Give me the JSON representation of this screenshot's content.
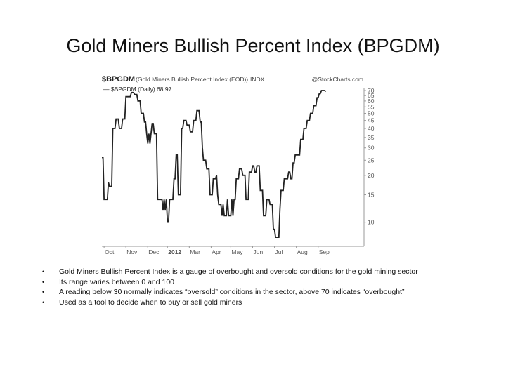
{
  "slide": {
    "title": "Gold Miners Bullish Percent Index (BPGDM)",
    "bullets": [
      "Gold Miners Bullish Percent Index is a gauge of overbought and oversold conditions for the gold mining sector",
      "Its range varies between 0 and 100",
      "A reading below 30 normally indicates “oversold” conditions in the sector, above 70 indicates “overbought”",
      "Used as a tool to decide when to buy or sell gold miners"
    ]
  },
  "chart_data": {
    "type": "line",
    "header": {
      "symbol": "$BPGDM",
      "name": "(Gold Miners Bullish Percent Index (EOD))",
      "exchange": "INDX",
      "credit": "@StockCharts.com"
    },
    "legend": {
      "label": "— $BPGDM (Daily) 68.97",
      "placement": "top-left"
    },
    "y_scale": "log",
    "ylim": [
      7,
      73
    ],
    "xlim": [
      0,
      12
    ],
    "grid": false,
    "x_ticks": [
      {
        "x": 0.1,
        "label": "Oct"
      },
      {
        "x": 1.1,
        "label": "Nov"
      },
      {
        "x": 2.1,
        "label": "Dec"
      },
      {
        "x": 3.0,
        "label": "2012"
      },
      {
        "x": 4.0,
        "label": "Mar"
      },
      {
        "x": 5.0,
        "label": "Apr"
      },
      {
        "x": 5.9,
        "label": "May"
      },
      {
        "x": 6.9,
        "label": "Jun"
      },
      {
        "x": 7.9,
        "label": "Jul"
      },
      {
        "x": 8.9,
        "label": "Aug"
      },
      {
        "x": 9.9,
        "label": "Sep"
      }
    ],
    "y_ticks": [
      {
        "value": 70,
        "label": "70"
      },
      {
        "value": 65,
        "label": "65"
      },
      {
        "value": 60,
        "label": "60"
      },
      {
        "value": 55,
        "label": "55"
      },
      {
        "value": 50,
        "label": "50"
      },
      {
        "value": 45,
        "label": "45"
      },
      {
        "value": 40,
        "label": "40"
      },
      {
        "value": 35,
        "label": "35"
      },
      {
        "value": 30,
        "label": "30"
      },
      {
        "value": 25,
        "label": "25"
      },
      {
        "value": 20,
        "label": "20"
      },
      {
        "value": 15,
        "label": "15"
      },
      {
        "value": 10,
        "label": "10"
      }
    ],
    "series": [
      {
        "name": "$BPGDM",
        "color": "#222222",
        "points": [
          [
            0.0,
            26
          ],
          [
            0.05,
            26
          ],
          [
            0.1,
            14
          ],
          [
            0.25,
            14
          ],
          [
            0.3,
            18
          ],
          [
            0.35,
            17
          ],
          [
            0.45,
            17
          ],
          [
            0.5,
            40
          ],
          [
            0.6,
            40
          ],
          [
            0.65,
            46
          ],
          [
            0.75,
            46
          ],
          [
            0.8,
            40
          ],
          [
            0.9,
            40
          ],
          [
            0.95,
            46
          ],
          [
            1.05,
            46
          ],
          [
            1.1,
            64
          ],
          [
            1.3,
            64
          ],
          [
            1.35,
            68
          ],
          [
            1.45,
            68
          ],
          [
            1.5,
            66
          ],
          [
            1.6,
            66
          ],
          [
            1.65,
            60
          ],
          [
            1.75,
            60
          ],
          [
            1.8,
            50
          ],
          [
            1.9,
            50
          ],
          [
            1.95,
            44
          ],
          [
            2.0,
            44
          ],
          [
            2.05,
            37
          ],
          [
            2.1,
            32
          ],
          [
            2.15,
            37
          ],
          [
            2.2,
            32
          ],
          [
            2.25,
            37
          ],
          [
            2.3,
            43
          ],
          [
            2.35,
            43
          ],
          [
            2.4,
            37
          ],
          [
            2.5,
            37
          ],
          [
            2.55,
            14
          ],
          [
            2.75,
            14
          ],
          [
            2.8,
            12
          ],
          [
            2.85,
            14
          ],
          [
            2.9,
            12
          ],
          [
            2.95,
            14
          ],
          [
            3.0,
            10
          ],
          [
            3.05,
            10
          ],
          [
            3.1,
            14
          ],
          [
            3.25,
            14
          ],
          [
            3.3,
            19
          ],
          [
            3.35,
            19
          ],
          [
            3.4,
            27
          ],
          [
            3.45,
            27
          ],
          [
            3.5,
            15
          ],
          [
            3.6,
            15
          ],
          [
            3.65,
            40
          ],
          [
            3.7,
            40
          ],
          [
            3.75,
            45
          ],
          [
            3.85,
            45
          ],
          [
            3.9,
            42
          ],
          [
            4.0,
            42
          ],
          [
            4.05,
            38
          ],
          [
            4.15,
            38
          ],
          [
            4.2,
            45
          ],
          [
            4.3,
            45
          ],
          [
            4.35,
            52
          ],
          [
            4.45,
            52
          ],
          [
            4.5,
            44
          ],
          [
            4.55,
            44
          ],
          [
            4.6,
            30
          ],
          [
            4.65,
            25
          ],
          [
            4.75,
            25
          ],
          [
            4.8,
            22
          ],
          [
            4.9,
            22
          ],
          [
            4.95,
            15
          ],
          [
            5.05,
            15
          ],
          [
            5.1,
            19
          ],
          [
            5.2,
            19
          ],
          [
            5.25,
            20
          ],
          [
            5.3,
            15
          ],
          [
            5.35,
            13
          ],
          [
            5.45,
            13
          ],
          [
            5.5,
            11
          ],
          [
            5.55,
            13
          ],
          [
            5.6,
            11
          ],
          [
            5.7,
            11
          ],
          [
            5.75,
            14
          ],
          [
            5.8,
            11
          ],
          [
            5.9,
            11
          ],
          [
            5.95,
            14
          ],
          [
            6.0,
            11
          ],
          [
            6.05,
            14
          ],
          [
            6.1,
            14
          ],
          [
            6.15,
            19
          ],
          [
            6.25,
            19
          ],
          [
            6.3,
            22
          ],
          [
            6.4,
            22
          ],
          [
            6.45,
            20
          ],
          [
            6.55,
            20
          ],
          [
            6.6,
            14
          ],
          [
            6.7,
            14
          ],
          [
            6.75,
            21
          ],
          [
            6.85,
            21
          ],
          [
            6.9,
            23
          ],
          [
            6.95,
            23
          ],
          [
            7.0,
            21
          ],
          [
            7.05,
            21
          ],
          [
            7.1,
            23
          ],
          [
            7.2,
            23
          ],
          [
            7.25,
            16
          ],
          [
            7.35,
            16
          ],
          [
            7.4,
            11
          ],
          [
            7.5,
            11
          ],
          [
            7.55,
            14
          ],
          [
            7.65,
            14
          ],
          [
            7.7,
            13
          ],
          [
            7.8,
            13
          ],
          [
            7.85,
            9
          ],
          [
            7.9,
            9
          ],
          [
            7.95,
            8
          ],
          [
            8.1,
            8
          ],
          [
            8.15,
            12
          ],
          [
            8.2,
            16
          ],
          [
            8.3,
            16
          ],
          [
            8.35,
            19
          ],
          [
            8.5,
            19
          ],
          [
            8.55,
            21
          ],
          [
            8.6,
            21
          ],
          [
            8.65,
            19
          ],
          [
            8.7,
            19
          ],
          [
            8.75,
            24
          ],
          [
            8.8,
            24
          ],
          [
            8.85,
            27
          ],
          [
            9.05,
            27
          ],
          [
            9.1,
            34
          ],
          [
            9.2,
            34
          ],
          [
            9.25,
            40
          ],
          [
            9.35,
            40
          ],
          [
            9.4,
            45
          ],
          [
            9.5,
            45
          ],
          [
            9.55,
            50
          ],
          [
            9.65,
            50
          ],
          [
            9.7,
            56
          ],
          [
            9.8,
            56
          ],
          [
            9.85,
            63
          ],
          [
            9.9,
            63
          ],
          [
            9.95,
            67
          ],
          [
            10.0,
            67
          ],
          [
            10.05,
            70
          ],
          [
            10.2,
            70
          ],
          [
            10.25,
            68.97
          ]
        ]
      }
    ]
  }
}
